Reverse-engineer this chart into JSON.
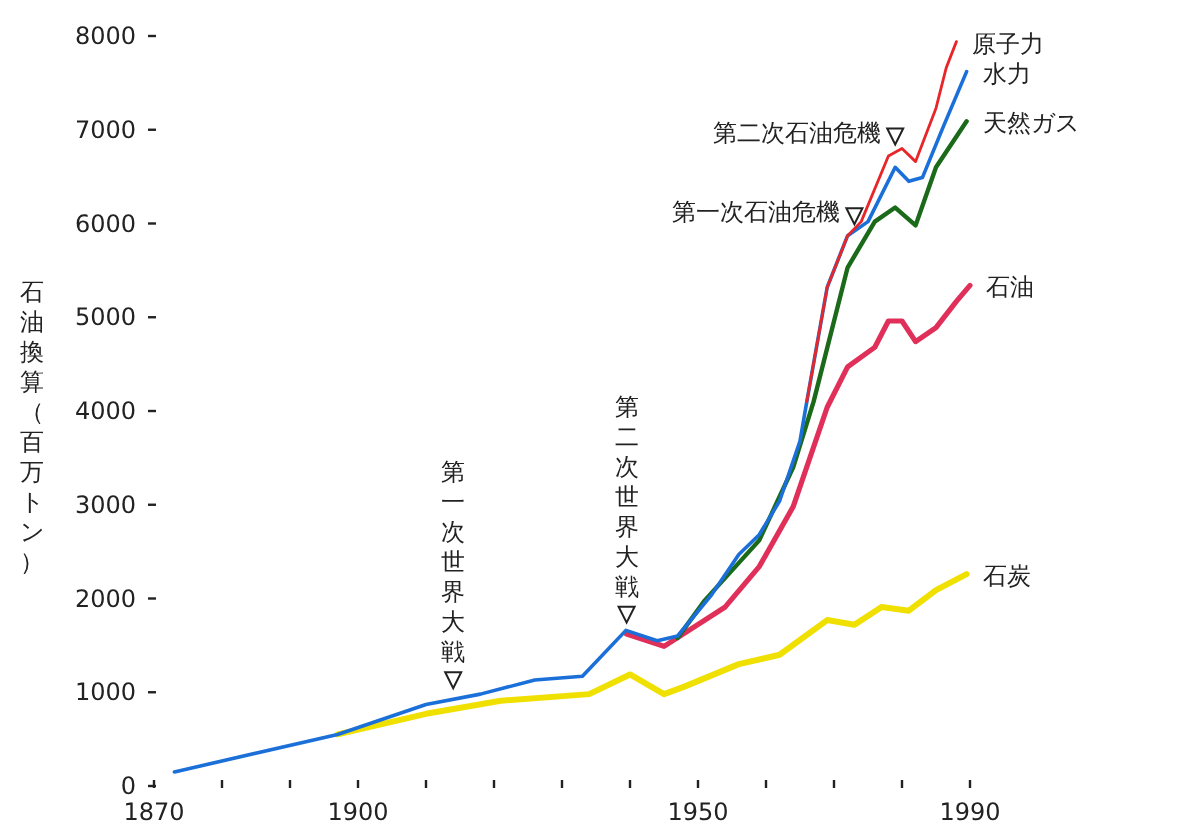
{
  "chart_data": {
    "type": "line",
    "ylabel": "石油換算（百万トン）",
    "xlim": [
      1870,
      1990
    ],
    "ylim": [
      0,
      8000
    ],
    "xticks": [
      {
        "value": 1870,
        "label": "1870"
      },
      {
        "value": 1880,
        "label": null
      },
      {
        "value": 1890,
        "label": null
      },
      {
        "value": 1900,
        "label": "1900"
      },
      {
        "value": 1910,
        "label": null
      },
      {
        "value": 1920,
        "label": null
      },
      {
        "value": 1930,
        "label": null
      },
      {
        "value": 1940,
        "label": null
      },
      {
        "value": 1950,
        "label": "1950"
      },
      {
        "value": 1960,
        "label": null
      },
      {
        "value": 1970,
        "label": null
      },
      {
        "value": 1980,
        "label": null
      },
      {
        "value": 1990,
        "label": "1990"
      }
    ],
    "yticks": [
      0,
      1000,
      2000,
      3000,
      4000,
      5000,
      6000,
      7000,
      8000
    ],
    "grid": false,
    "legend": false,
    "marker": "none",
    "series": [
      {
        "name": "石炭",
        "color": "#f0e000",
        "x": [
          1897,
          1910,
          1921,
          1934,
          1940,
          1945,
          1948,
          1956,
          1962,
          1969,
          1973,
          1977,
          1981,
          1985,
          1989.5
        ],
        "values": [
          550,
          770,
          910,
          980,
          1190,
          980,
          1060,
          1300,
          1400,
          1770,
          1720,
          1910,
          1870,
          2090,
          2260
        ]
      },
      {
        "name": "石油",
        "color": "#e0305a",
        "x": [
          1939.5,
          1945,
          1954,
          1959,
          1964,
          1969,
          1972,
          1976,
          1978,
          1980,
          1982,
          1985,
          1988,
          1990
        ],
        "values": [
          1620,
          1490,
          1910,
          2340,
          2980,
          4040,
          4470,
          4680,
          4960,
          4960,
          4740,
          4890,
          5170,
          5340
        ]
      },
      {
        "name": "天然ガス",
        "color": "#1a6a1a",
        "x": [
          1947,
          1951,
          1959,
          1964,
          1967,
          1972,
          1976,
          1979,
          1982,
          1985,
          1989.5
        ],
        "values": [
          1580,
          1980,
          2620,
          3400,
          4100,
          5530,
          6020,
          6170,
          5980,
          6600,
          7090
        ]
      },
      {
        "name": "水力",
        "color": "#1a6fd8",
        "x": [
          1873,
          1897,
          1910,
          1918,
          1926,
          1933,
          1939.4,
          1944,
          1947,
          1952,
          1956,
          1959,
          1962,
          1965,
          1966,
          1969,
          1972,
          1975,
          1979,
          1981,
          1983,
          1986,
          1989.5
        ],
        "values": [
          150,
          550,
          870,
          980,
          1130,
          1170,
          1660,
          1550,
          1600,
          2040,
          2470,
          2680,
          3040,
          3680,
          4100,
          5320,
          5870,
          6020,
          6600,
          6450,
          6490,
          7020,
          7620
        ]
      },
      {
        "name": "原子力",
        "color": "#e8262a",
        "x": [
          1966,
          1969,
          1972,
          1974,
          1978,
          1980,
          1982,
          1985,
          1986.5,
          1988
        ],
        "values": [
          4100,
          5320,
          5870,
          6020,
          6720,
          6800,
          6660,
          7230,
          7660,
          7940
        ]
      }
    ],
    "annotations": [
      {
        "text": "第一次世界大戦",
        "x": 1914,
        "y": 1000
      },
      {
        "text": "第二次世界大戦",
        "x": 1939.5,
        "y": 1700
      },
      {
        "text": "第一次石油危機",
        "x": 1973,
        "y": 5950
      },
      {
        "text": "第二次石油危機",
        "x": 1979,
        "y": 6800
      }
    ]
  }
}
